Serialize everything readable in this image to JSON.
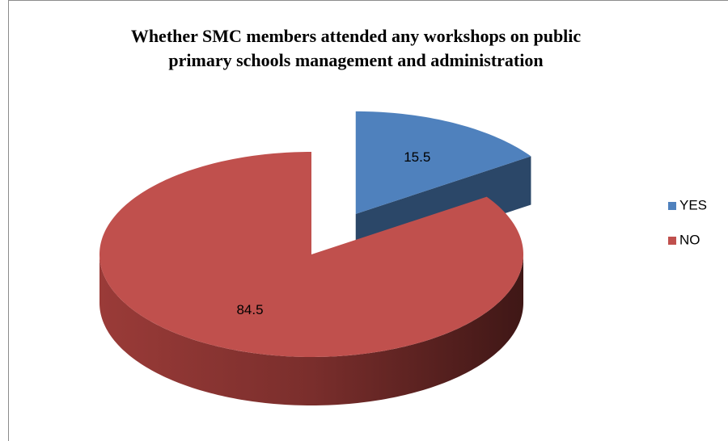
{
  "chart_data": {
    "type": "pie",
    "title": "Whether SMC members attended any workshops on public primary schools management and administration",
    "categories": [
      "YES",
      "NO"
    ],
    "values": [
      15.5,
      84.5
    ],
    "colors": [
      "#4f81bd",
      "#c0504d"
    ],
    "exploded": [
      true,
      false
    ],
    "legend": "right"
  }
}
